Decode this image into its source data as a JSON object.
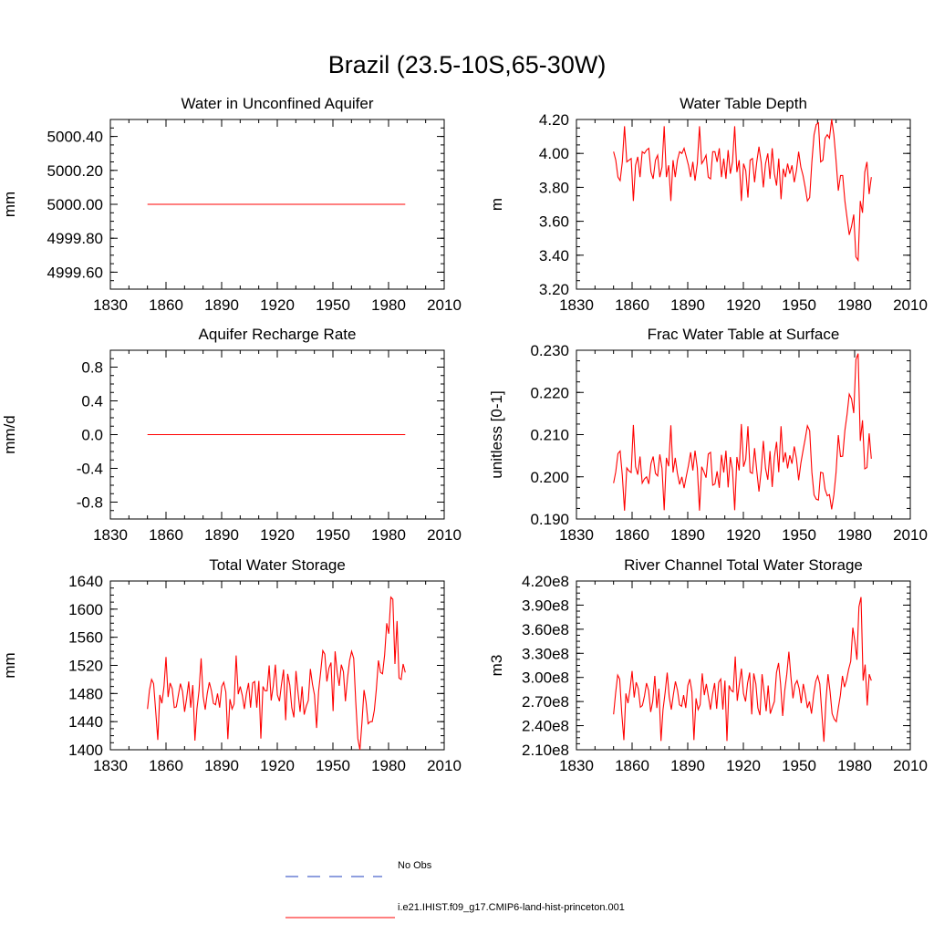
{
  "title": "Brazil (23.5-10S,65-30W)",
  "colors": {
    "model": "#ff0000",
    "obs": "#1f3fbf",
    "axis": "#000000"
  },
  "legend": {
    "obs_label": "No Obs",
    "model_label": "i.e21.IHIST.f09_g17.CMIP6-land-hist-princeton.001"
  },
  "chart_data": [
    {
      "type": "line",
      "title": "Water in Unconfined Aquifer",
      "ylabel": "mm",
      "xlim": [
        1830,
        2010
      ],
      "ylim": [
        4999.5,
        5000.5
      ],
      "xticks": [
        1830,
        1860,
        1890,
        1920,
        1950,
        1980,
        2010
      ],
      "yticks": [
        4999.6,
        4999.8,
        5000.0,
        5000.2,
        5000.4
      ],
      "ytick_labels": [
        "4999.60",
        "4999.80",
        "5000.00",
        "5000.20",
        "5000.40"
      ],
      "series": [
        {
          "x": [
            1850,
            1989
          ],
          "y": [
            5000.0,
            5000.0
          ]
        }
      ]
    },
    {
      "type": "line",
      "title": "Water Table Depth",
      "ylabel": "m",
      "xlim": [
        1830,
        2010
      ],
      "ylim": [
        3.2,
        4.2
      ],
      "xticks": [
        1830,
        1860,
        1890,
        1920,
        1950,
        1980,
        2010
      ],
      "yticks": [
        3.2,
        3.4,
        3.6,
        3.8,
        4.0,
        4.2
      ],
      "ytick_labels": [
        "3.20",
        "3.40",
        "3.60",
        "3.80",
        "4.00",
        "4.20"
      ],
      "series": [
        {
          "x_start": 1850,
          "y": [
            4.01,
            3.96,
            3.86,
            3.84,
            3.95,
            4.16,
            3.95,
            3.96,
            3.97,
            3.72,
            3.93,
            3.98,
            3.86,
            4.01,
            4.0,
            4.02,
            4.03,
            3.89,
            3.85,
            3.96,
            3.99,
            3.86,
            3.92,
            4.16,
            3.86,
            3.93,
            3.72,
            3.96,
            3.86,
            3.96,
            4.01,
            4.0,
            4.03,
            3.98,
            3.93,
            3.86,
            3.95,
            3.84,
            3.94,
            4.16,
            3.94,
            3.96,
            3.99,
            3.86,
            3.85,
            4.01,
            4.01,
            3.95,
            4.03,
            3.86,
            3.97,
            3.85,
            4.02,
            3.88,
            3.95,
            4.16,
            3.89,
            3.96,
            3.72,
            3.94,
            3.9,
            3.74,
            3.96,
            3.97,
            3.83,
            3.95,
            4.04,
            3.95,
            3.8,
            3.94,
            4.0,
            3.85,
            4.03,
            3.88,
            3.81,
            3.97,
            3.73,
            3.91,
            3.86,
            3.94,
            3.88,
            3.93,
            3.83,
            3.9,
            4.01,
            3.92,
            3.87,
            3.8,
            3.72,
            3.74,
            3.95,
            4.11,
            4.17,
            4.18,
            3.95,
            3.96,
            4.09,
            4.11,
            4.09,
            4.2,
            4.11,
            3.96,
            3.78,
            3.87,
            3.87,
            3.72,
            3.62,
            3.52,
            3.57,
            3.64,
            3.39,
            3.37,
            3.72,
            3.65,
            3.89,
            3.95,
            3.76,
            3.86
          ]
        }
      ]
    },
    {
      "type": "line",
      "title": "Aquifer Recharge Rate",
      "ylabel": "mm/d",
      "xlim": [
        1830,
        2010
      ],
      "ylim": [
        -1.0,
        1.0
      ],
      "xticks": [
        1830,
        1860,
        1890,
        1920,
        1950,
        1980,
        2010
      ],
      "yticks": [
        -0.8,
        -0.4,
        0.0,
        0.4,
        0.8
      ],
      "ytick_labels": [
        "-0.8",
        "-0.4",
        "0.0",
        "0.4",
        "0.8"
      ],
      "series": [
        {
          "x": [
            1850,
            1989
          ],
          "y": [
            0.0,
            0.0
          ]
        }
      ]
    },
    {
      "type": "line",
      "title": "Frac Water Table at Surface",
      "ylabel": "unitless [0-1]",
      "xlim": [
        1830,
        2010
      ],
      "ylim": [
        0.19,
        0.23
      ],
      "xticks": [
        1830,
        1860,
        1890,
        1920,
        1950,
        1980,
        2010
      ],
      "yticks": [
        0.19,
        0.2,
        0.21,
        0.22,
        0.23
      ],
      "ytick_labels": [
        "0.190",
        "0.200",
        "0.210",
        "0.220",
        "0.230"
      ],
      "series": [
        {
          "x_start": 1850,
          "y": [
            0.1985,
            0.2012,
            0.2055,
            0.2061,
            0.2003,
            0.192,
            0.2021,
            0.2014,
            0.201,
            0.2123,
            0.2024,
            0.2005,
            0.2048,
            0.1985,
            0.1995,
            0.2,
            0.1983,
            0.2031,
            0.2048,
            0.2008,
            0.2002,
            0.2053,
            0.202,
            0.1921,
            0.2045,
            0.2025,
            0.2122,
            0.201,
            0.2045,
            0.2008,
            0.1982,
            0.2,
            0.1973,
            0.2001,
            0.2027,
            0.2058,
            0.2015,
            0.2062,
            0.2021,
            0.192,
            0.2024,
            0.2012,
            0.1998,
            0.2054,
            0.2058,
            0.198,
            0.1983,
            0.2013,
            0.1974,
            0.2052,
            0.201,
            0.2062,
            0.1975,
            0.2047,
            0.2016,
            0.1921,
            0.2047,
            0.2015,
            0.2125,
            0.2024,
            0.2041,
            0.212,
            0.2011,
            0.2008,
            0.2068,
            0.2014,
            0.1965,
            0.2014,
            0.2085,
            0.202,
            0.1993,
            0.2061,
            0.1976,
            0.2047,
            0.2083,
            0.2011,
            0.212,
            0.2034,
            0.2058,
            0.202,
            0.2051,
            0.2031,
            0.2072,
            0.2043,
            0.1992,
            0.2032,
            0.2062,
            0.209,
            0.2121,
            0.2109,
            0.2011,
            0.1957,
            0.1947,
            0.1945,
            0.2011,
            0.2009,
            0.197,
            0.1955,
            0.1958,
            0.1923,
            0.1957,
            0.201,
            0.2099,
            0.2048,
            0.2049,
            0.211,
            0.2148,
            0.2196,
            0.2185,
            0.2151,
            0.2278,
            0.2292,
            0.2085,
            0.2134,
            0.2019,
            0.2022,
            0.2103,
            0.2043
          ]
        }
      ]
    },
    {
      "type": "line",
      "title": "Total Water Storage",
      "ylabel": "mm",
      "xlim": [
        1830,
        2010
      ],
      "ylim": [
        1400,
        1640
      ],
      "xticks": [
        1830,
        1860,
        1890,
        1920,
        1950,
        1980,
        2010
      ],
      "yticks": [
        1400,
        1440,
        1480,
        1520,
        1560,
        1600,
        1640
      ],
      "ytick_labels": [
        "1400",
        "1440",
        "1480",
        "1520",
        "1560",
        "1600",
        "1640"
      ],
      "series": [
        {
          "x_start": 1850,
          "y": [
            1458,
            1485,
            1500,
            1494,
            1455,
            1414,
            1478,
            1466,
            1490,
            1532,
            1475,
            1495,
            1487,
            1460,
            1461,
            1478,
            1494,
            1483,
            1454,
            1473,
            1497,
            1460,
            1492,
            1413,
            1458,
            1484,
            1530,
            1476,
            1457,
            1480,
            1496,
            1484,
            1466,
            1464,
            1480,
            1460,
            1490,
            1496,
            1482,
            1415,
            1472,
            1458,
            1465,
            1534,
            1479,
            1490,
            1477,
            1458,
            1480,
            1495,
            1460,
            1495,
            1497,
            1460,
            1498,
            1416,
            1490,
            1484,
            1484,
            1520,
            1470,
            1491,
            1521,
            1478,
            1469,
            1493,
            1514,
            1442,
            1508,
            1492,
            1460,
            1446,
            1512,
            1482,
            1454,
            1490,
            1450,
            1462,
            1470,
            1515,
            1493,
            1478,
            1431,
            1483,
            1511,
            1541,
            1536,
            1497,
            1516,
            1524,
            1455,
            1540,
            1510,
            1491,
            1521,
            1511,
            1469,
            1502,
            1527,
            1540,
            1530,
            1469,
            1416,
            1400,
            1438,
            1485,
            1468,
            1437,
            1440,
            1440,
            1456,
            1486,
            1527,
            1510,
            1508,
            1535,
            1580,
            1565,
            1617,
            1614,
            1522,
            1583,
            1502,
            1500,
            1522,
            1510
          ]
        }
      ]
    },
    {
      "type": "line",
      "title": "River Channel Total Water Storage",
      "ylabel": "m3",
      "xlim": [
        1830,
        2010
      ],
      "ylim": [
        210000000.0,
        420000000.0
      ],
      "xticks": [
        1830,
        1860,
        1890,
        1920,
        1950,
        1980,
        2010
      ],
      "yticks": [
        210000000.0,
        240000000.0,
        270000000.0,
        300000000.0,
        330000000.0,
        360000000.0,
        390000000.0,
        420000000.0
      ],
      "ytick_labels": [
        "2.10e8",
        "2.40e8",
        "2.70e8",
        "3.00e8",
        "3.30e8",
        "3.60e8",
        "3.90e8",
        "4.20e8"
      ],
      "series": [
        {
          "x_start": 1850,
          "y": [
            254000000.0,
            280000000.0,
            303000000.0,
            298000000.0,
            255000000.0,
            222000000.0,
            280000000.0,
            268000000.0,
            286000000.0,
            308000000.0,
            275000000.0,
            294000000.0,
            286000000.0,
            263000000.0,
            265000000.0,
            277000000.0,
            293000000.0,
            284000000.0,
            257000000.0,
            270000000.0,
            302000000.0,
            262000000.0,
            286000000.0,
            221000000.0,
            260000000.0,
            281000000.0,
            306000000.0,
            276000000.0,
            260000000.0,
            278000000.0,
            295000000.0,
            284000000.0,
            266000000.0,
            264000000.0,
            278000000.0,
            262000000.0,
            290000000.0,
            298000000.0,
            282000000.0,
            222000000.0,
            274000000.0,
            260000000.0,
            266000000.0,
            305000000.0,
            278000000.0,
            292000000.0,
            276000000.0,
            260000000.0,
            279000000.0,
            293000000.0,
            261000000.0,
            294000000.0,
            298000000.0,
            260000000.0,
            296000000.0,
            221000000.0,
            290000000.0,
            284000000.0,
            282000000.0,
            326000000.0,
            271000000.0,
            292000000.0,
            311000000.0,
            280000000.0,
            270000000.0,
            293000000.0,
            306000000.0,
            254000000.0,
            305000000.0,
            292000000.0,
            262000000.0,
            253000000.0,
            304000000.0,
            282000000.0,
            258000000.0,
            290000000.0,
            255000000.0,
            263000000.0,
            270000000.0,
            306000000.0,
            318000000.0,
            292000000.0,
            252000000.0,
            283000000.0,
            304000000.0,
            332000000.0,
            301000000.0,
            274000000.0,
            291000000.0,
            296000000.0,
            286000000.0,
            268000000.0,
            292000000.0,
            279000000.0,
            262000000.0,
            270000000.0,
            255000000.0,
            278000000.0,
            295000000.0,
            302000000.0,
            292000000.0,
            256000000.0,
            220000000.0,
            272000000.0,
            304000000.0,
            282000000.0,
            255000000.0,
            248000000.0,
            245000000.0,
            262000000.0,
            278000000.0,
            302000000.0,
            288000000.0,
            297000000.0,
            310000000.0,
            320000000.0,
            362000000.0,
            345000000.0,
            322000000.0,
            388000000.0,
            400000000.0,
            296000000.0,
            316000000.0,
            265000000.0,
            304000000.0,
            296000000.0
          ]
        }
      ]
    }
  ]
}
